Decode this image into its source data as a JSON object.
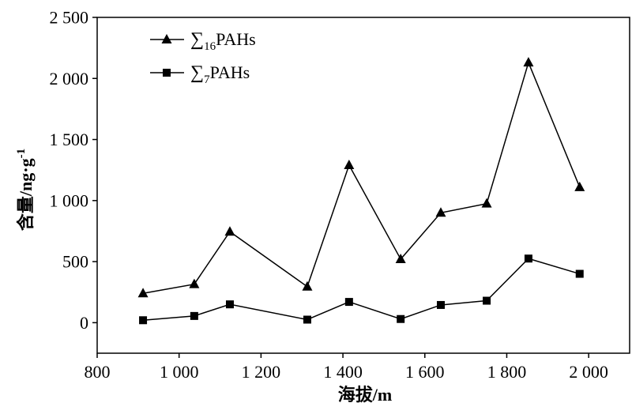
{
  "chart_data": {
    "type": "line",
    "x": [
      912,
      1037,
      1124,
      1313,
      1415,
      1541,
      1639,
      1751,
      1853,
      1978
    ],
    "series": [
      {
        "name_parts": {
          "prefix": "∑",
          "subscript": "16",
          "suffix": "PAHs"
        },
        "marker": "triangle",
        "color": "#000000",
        "values": [
          240,
          315,
          745,
          295,
          1290,
          520,
          900,
          975,
          2130,
          1110
        ]
      },
      {
        "name_parts": {
          "prefix": "∑",
          "subscript": "7",
          "suffix": "PAHs"
        },
        "marker": "square",
        "color": "#000000",
        "values": [
          20,
          55,
          150,
          25,
          170,
          30,
          145,
          180,
          525,
          400
        ]
      }
    ],
    "xlabel": "海拔/m",
    "ylabel": "含量/ng·g",
    "ylabel_sup": "-1",
    "xlim": [
      800,
      2100
    ],
    "ylim": [
      -250,
      2500
    ],
    "x_ticks": [
      {
        "value": 800,
        "label": "800"
      },
      {
        "value": 1000,
        "label": "1 000"
      },
      {
        "value": 1200,
        "label": "1 200"
      },
      {
        "value": 1400,
        "label": "1 400"
      },
      {
        "value": 1600,
        "label": "1 600"
      },
      {
        "value": 1800,
        "label": "1 800"
      },
      {
        "value": 2000,
        "label": "2 000"
      }
    ],
    "y_ticks": [
      {
        "value": 0,
        "label": "0"
      },
      {
        "value": 500,
        "label": "500"
      },
      {
        "value": 1000,
        "label": "1 000"
      },
      {
        "value": 1500,
        "label": "1 500"
      },
      {
        "value": 2000,
        "label": "2 000"
      },
      {
        "value": 2500,
        "label": "2 500"
      }
    ],
    "grid": false,
    "legend_position": "top-left"
  }
}
